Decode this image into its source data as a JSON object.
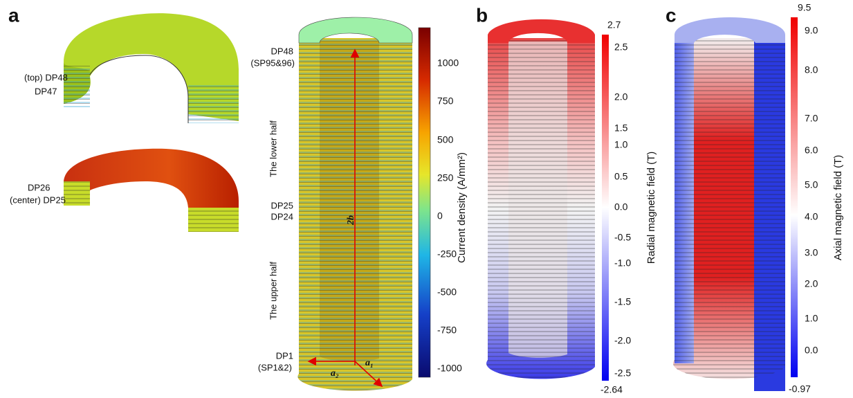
{
  "panel_a": {
    "label": "a",
    "top_ring_labels": [
      "(top) DP48",
      "DP47"
    ],
    "center_ring_labels": [
      "DP26",
      "(center) DP25"
    ],
    "coil_labels": [
      "DP48",
      "(SP95&96)",
      "The lower half",
      "DP25",
      "DP24",
      "The upper half",
      "DP1",
      "(SP1&2)"
    ],
    "dimension_labels": [
      "2b",
      "a₂",
      "a₁"
    ],
    "colorbar": {
      "title": "Current density (A/mm²)",
      "ticks": [
        "1000",
        "750",
        "500",
        "250",
        "0",
        "-250",
        "-500",
        "-750",
        "-1000"
      ]
    }
  },
  "panel_b": {
    "label": "b",
    "colorbar": {
      "title": "Radial magnetic field (T)",
      "max": "2.7",
      "min": "-2.64",
      "ticks": [
        "2.5",
        "2.0",
        "1.5",
        "1.0",
        "0.5",
        "0.0",
        "-0.5",
        "-1.0",
        "-1.5",
        "-2.0",
        "-2.5"
      ]
    }
  },
  "panel_c": {
    "label": "c",
    "colorbar": {
      "title": "Axial magnetic field (T)",
      "max": "9.5",
      "min": "-0.97",
      "ticks": [
        "9.0",
        "8.0",
        "7.0",
        "6.0",
        "5.0",
        "4.0",
        "3.0",
        "2.0",
        "1.0",
        "0.0"
      ]
    }
  }
}
